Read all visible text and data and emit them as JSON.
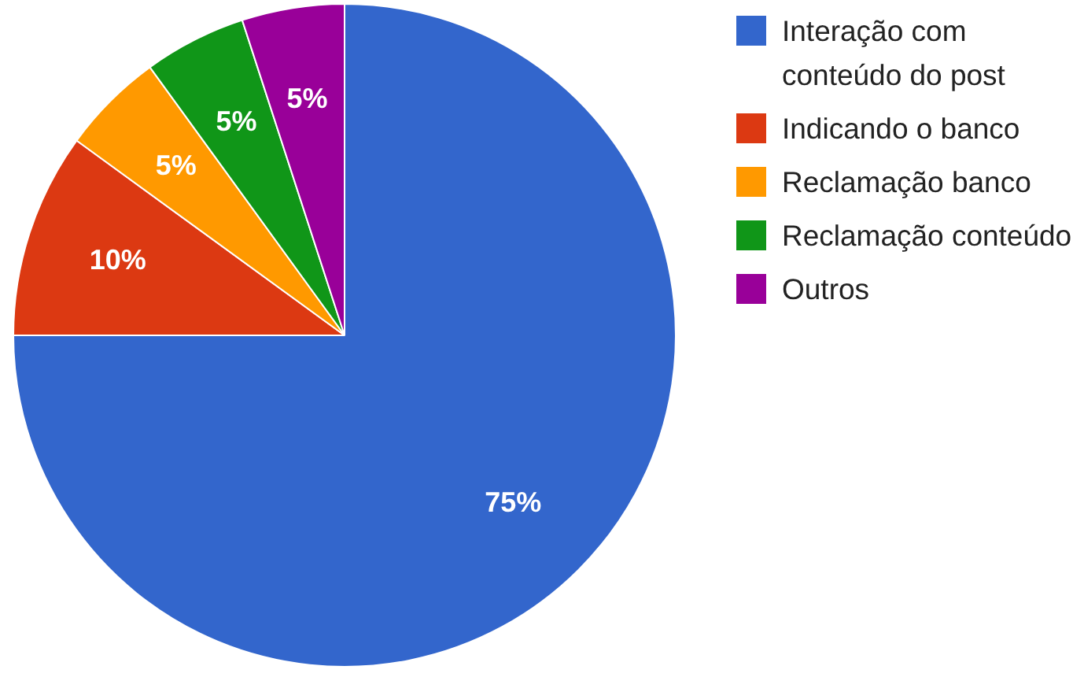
{
  "chart_data": {
    "type": "pie",
    "categories": [
      "Interação com conteúdo do post",
      "Indicando o banco",
      "Reclamação banco",
      "Reclamação conteúdo",
      "Outros"
    ],
    "values": [
      75,
      10,
      5,
      5,
      5
    ],
    "value_labels": [
      "75%",
      "10%",
      "5%",
      "5%",
      "5%"
    ],
    "colors": [
      "#3366cc",
      "#dc3912",
      "#ff9900",
      "#109618",
      "#990099"
    ],
    "legend": "right"
  }
}
